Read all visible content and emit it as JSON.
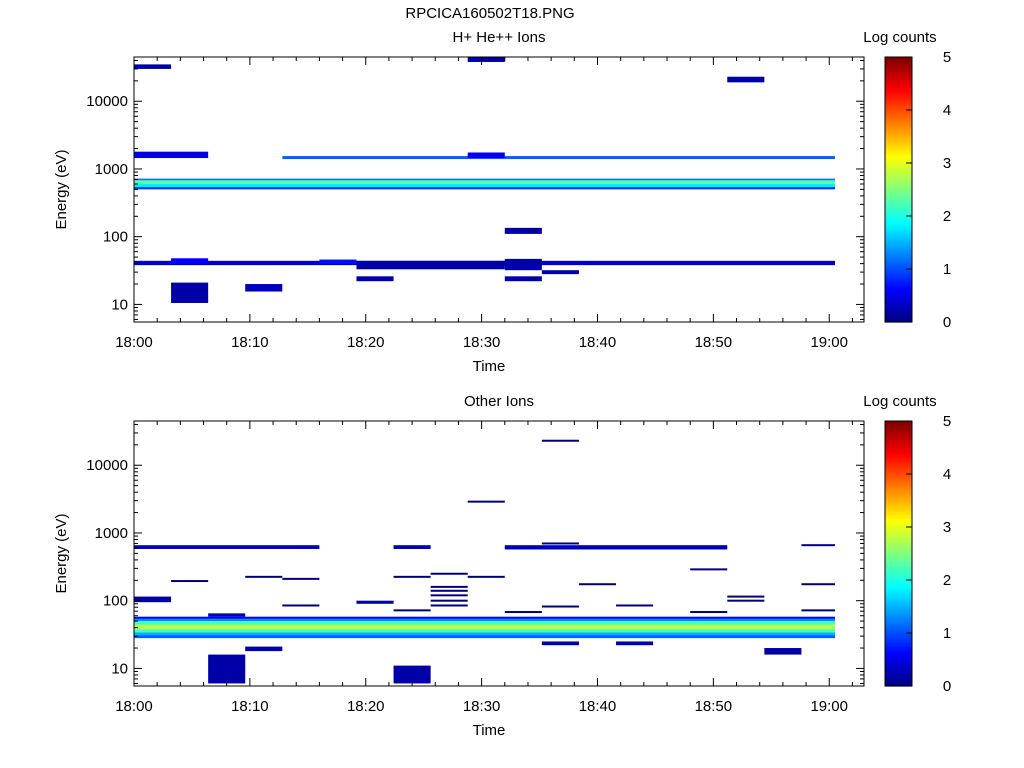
{
  "figure_title": "RPCICA160502T18.PNG",
  "colors": {
    "background": "#ffffff",
    "colormap": [
      "#00007f",
      "#0000ff",
      "#007fff",
      "#00ffff",
      "#7fff7f",
      "#ffff00",
      "#ff7f00",
      "#ff0000",
      "#7f0000"
    ]
  },
  "chart_data": [
    {
      "type": "heatmap",
      "title": "H+ He++ Ions",
      "xlabel": "Time",
      "ylabel": "Energy (eV)",
      "x_ticks": [
        "18:00",
        "18:10",
        "18:20",
        "18:30",
        "18:40",
        "18:50",
        "19:00"
      ],
      "y_ticks": [
        "10",
        "100",
        "1000",
        "10000"
      ],
      "y_scale": "log",
      "ylim": [
        5.5,
        45000
      ],
      "xlim_minutes": [
        0,
        63
      ],
      "colorbar": {
        "title": "Log counts",
        "ticks": [
          "0",
          "1",
          "2",
          "3",
          "4",
          "5"
        ],
        "range": [
          0,
          5
        ]
      },
      "time_bins_start_minutes": [
        0,
        3.2,
        6.4,
        9.6,
        12.8,
        16,
        19.2,
        22.4,
        25.6,
        28.8,
        32,
        35.2,
        38.4,
        41.6,
        44.8,
        48,
        51.2,
        54.4,
        57.6
      ],
      "bin_width_minutes": 3.2,
      "cells": [
        {
          "t": [
            0,
            60.5
          ],
          "e": [
            600,
            680
          ],
          "v": 2.3
        },
        {
          "t": [
            0,
            60.5
          ],
          "e": [
            540,
            600
          ],
          "v": 1.8
        },
        {
          "t": [
            0,
            60.5
          ],
          "e": [
            680,
            720
          ],
          "v": 1.2
        },
        {
          "t": [
            0,
            60.5
          ],
          "e": [
            500,
            540
          ],
          "v": 0.9
        },
        {
          "t": [
            12.8,
            60.5
          ],
          "e": [
            1400,
            1550
          ],
          "v": 1.1
        },
        {
          "t": [
            0,
            60.5
          ],
          "e": [
            38,
            44
          ],
          "v": 0.4
        },
        {
          "t": [
            0,
            6.4
          ],
          "e": [
            1450,
            1800
          ],
          "v": 0.5
        },
        {
          "t": [
            3.2,
            6.4
          ],
          "e": [
            10.5,
            21
          ],
          "v": 0.2
        },
        {
          "t": [
            9.6,
            12.8
          ],
          "e": [
            15.5,
            20
          ],
          "v": 0.3
        },
        {
          "t": [
            19.2,
            32
          ],
          "e": [
            33,
            44
          ],
          "v": 0.2
        },
        {
          "t": [
            32,
            35.2
          ],
          "e": [
            32,
            47
          ],
          "v": 0.2
        },
        {
          "t": [
            19.2,
            22.4
          ],
          "e": [
            22,
            26
          ],
          "v": 0.2
        },
        {
          "t": [
            32,
            35.2
          ],
          "e": [
            22,
            26
          ],
          "v": 0.2
        },
        {
          "t": [
            35.2,
            38.4
          ],
          "e": [
            28,
            32
          ],
          "v": 0.2
        },
        {
          "t": [
            16,
            19.2
          ],
          "e": [
            40,
            46
          ],
          "v": 0.7
        },
        {
          "t": [
            0,
            3.2
          ],
          "e": [
            30000,
            35000
          ],
          "v": 0.2
        },
        {
          "t": [
            28.8,
            32
          ],
          "e": [
            38000,
            45000
          ],
          "v": 0.2
        },
        {
          "t": [
            28.8,
            32
          ],
          "e": [
            1450,
            1750
          ],
          "v": 0.6
        },
        {
          "t": [
            51.2,
            54.4
          ],
          "e": [
            19000,
            23000
          ],
          "v": 0.2
        },
        {
          "t": [
            32,
            35.2
          ],
          "e": [
            110,
            135
          ],
          "v": 0.2
        },
        {
          "t": [
            3.2,
            6.4
          ],
          "e": [
            40,
            48
          ],
          "v": 0.6
        }
      ],
      "sparse_cells_note": ""
    },
    {
      "type": "heatmap",
      "title": "Other Ions",
      "xlabel": "Time",
      "ylabel": "Energy (eV)",
      "x_ticks": [
        "18:00",
        "18:10",
        "18:20",
        "18:30",
        "18:40",
        "18:50",
        "19:00"
      ],
      "y_ticks": [
        "10",
        "100",
        "1000",
        "10000"
      ],
      "y_scale": "log",
      "ylim": [
        5.5,
        45000
      ],
      "xlim_minutes": [
        0,
        63
      ],
      "colorbar": {
        "title": "Log counts",
        "ticks": [
          "0",
          "1",
          "2",
          "3",
          "4",
          "5"
        ],
        "range": [
          0,
          5
        ]
      },
      "cells": [
        {
          "t": [
            0,
            60.5
          ],
          "e": [
            38,
            44
          ],
          "v": 2.8
        },
        {
          "t": [
            0,
            60.5
          ],
          "e": [
            34,
            38
          ],
          "v": 2.2
        },
        {
          "t": [
            0,
            60.5
          ],
          "e": [
            44,
            50
          ],
          "v": 2.2
        },
        {
          "t": [
            0,
            60.5
          ],
          "e": [
            31,
            34
          ],
          "v": 1.5
        },
        {
          "t": [
            0,
            60.5
          ],
          "e": [
            50,
            54
          ],
          "v": 1.3
        },
        {
          "t": [
            0,
            60.5
          ],
          "e": [
            28,
            31
          ],
          "v": 1.1
        },
        {
          "t": [
            0,
            60.5
          ],
          "e": [
            54,
            58
          ],
          "v": 0.6
        },
        {
          "t": [
            0,
            16
          ],
          "e": [
            580,
            660
          ],
          "v": 0.4
        },
        {
          "t": [
            22.4,
            25.6
          ],
          "e": [
            580,
            660
          ],
          "v": 0.3
        },
        {
          "t": [
            32,
            51.2
          ],
          "e": [
            570,
            660
          ],
          "v": 0.3
        },
        {
          "t": [
            6.4,
            9.6
          ],
          "e": [
            6,
            16
          ],
          "v": 0.2
        },
        {
          "t": [
            22.4,
            25.6
          ],
          "e": [
            6,
            11
          ],
          "v": 0.2
        },
        {
          "t": [
            0,
            3.2
          ],
          "e": [
            95,
            115
          ],
          "v": 0.2
        },
        {
          "t": [
            6.4,
            9.6
          ],
          "e": [
            58,
            65
          ],
          "v": 0.3
        },
        {
          "t": [
            35.2,
            38.4
          ],
          "e": [
            22,
            25
          ],
          "v": 0.2
        },
        {
          "t": [
            41.6,
            44.8
          ],
          "e": [
            22,
            25
          ],
          "v": 0.2
        },
        {
          "t": [
            54.4,
            57.6
          ],
          "e": [
            16,
            20
          ],
          "v": 0.2
        },
        {
          "t": [
            9.6,
            12.8
          ],
          "e": [
            18,
            21
          ],
          "v": 0.2
        },
        {
          "t": [
            19.2,
            22.4
          ],
          "e": [
            90,
            100
          ],
          "v": 0.2
        }
      ],
      "lines": [
        {
          "t": [
            3.2,
            6.4
          ],
          "e": 195
        },
        {
          "t": [
            9.6,
            12.8
          ],
          "e": 225
        },
        {
          "t": [
            12.8,
            16
          ],
          "e": 210
        },
        {
          "t": [
            12.8,
            16
          ],
          "e": 85
        },
        {
          "t": [
            22.4,
            25.6
          ],
          "e": 225
        },
        {
          "t": [
            22.4,
            25.6
          ],
          "e": 72
        },
        {
          "t": [
            25.6,
            28.8
          ],
          "e": 250
        },
        {
          "t": [
            25.6,
            28.8
          ],
          "e": 160
        },
        {
          "t": [
            25.6,
            28.8
          ],
          "e": 140
        },
        {
          "t": [
            25.6,
            28.8
          ],
          "e": 120
        },
        {
          "t": [
            25.6,
            28.8
          ],
          "e": 100
        },
        {
          "t": [
            25.6,
            28.8
          ],
          "e": 85
        },
        {
          "t": [
            28.8,
            32
          ],
          "e": 225
        },
        {
          "t": [
            28.8,
            32
          ],
          "e": 2900
        },
        {
          "t": [
            32,
            35.2
          ],
          "e": 68
        },
        {
          "t": [
            35.2,
            38.4
          ],
          "e": 23000
        },
        {
          "t": [
            35.2,
            38.4
          ],
          "e": 700
        },
        {
          "t": [
            35.2,
            38.4
          ],
          "e": 82
        },
        {
          "t": [
            38.4,
            41.6
          ],
          "e": 175
        },
        {
          "t": [
            41.6,
            44.8
          ],
          "e": 85
        },
        {
          "t": [
            48,
            51.2
          ],
          "e": 290
        },
        {
          "t": [
            48,
            51.2
          ],
          "e": 68
        },
        {
          "t": [
            51.2,
            54.4
          ],
          "e": 115
        },
        {
          "t": [
            51.2,
            54.4
          ],
          "e": 100
        },
        {
          "t": [
            57.6,
            60.5
          ],
          "e": 660
        },
        {
          "t": [
            57.6,
            60.5
          ],
          "e": 175
        },
        {
          "t": [
            57.6,
            60.5
          ],
          "e": 72
        }
      ]
    }
  ]
}
